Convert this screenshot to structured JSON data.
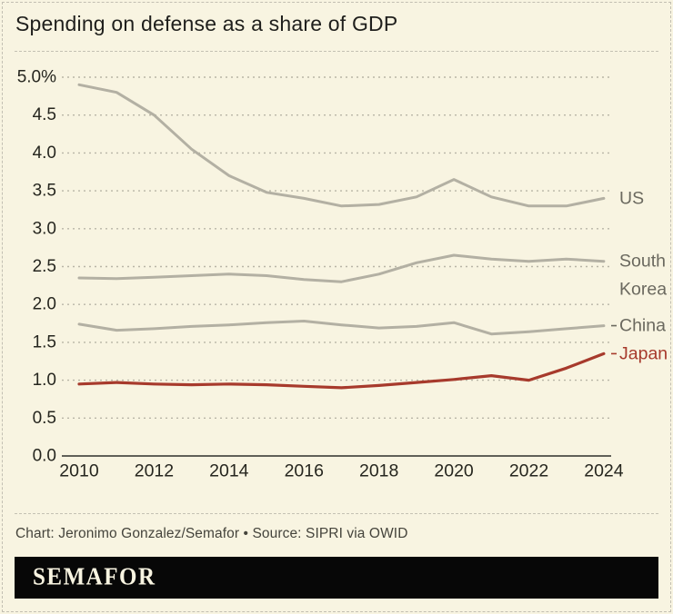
{
  "title": "Spending on defense as a share of GDP",
  "credit": "Chart: Jeronimo Gonzalez/Semafor • Source: SIPRI via OWID",
  "logo": "SEMAFOR",
  "colors": {
    "background": "#f8f4e1",
    "line_gray": "#b3b0a3",
    "label_gray": "#6b695f",
    "accent_red": "#a73a2c",
    "grid_dot": "#b8b5a6",
    "axis": "#2e2e2a",
    "tick_text": "#26261f",
    "logo_bar": "#070707"
  },
  "chart_data": {
    "type": "line",
    "x": [
      2010,
      2011,
      2012,
      2013,
      2014,
      2015,
      2016,
      2017,
      2018,
      2019,
      2020,
      2021,
      2022,
      2023,
      2024
    ],
    "series": [
      {
        "name": "US",
        "color": "gray",
        "values": [
          4.9,
          4.8,
          4.5,
          4.05,
          3.7,
          3.48,
          3.4,
          3.3,
          3.32,
          3.42,
          3.65,
          3.42,
          3.3,
          3.3,
          3.4
        ]
      },
      {
        "name": "South Korea",
        "color": "gray",
        "values": [
          2.35,
          2.34,
          2.36,
          2.38,
          2.4,
          2.38,
          2.33,
          2.3,
          2.4,
          2.55,
          2.65,
          2.6,
          2.57,
          2.6,
          2.57
        ]
      },
      {
        "name": "China",
        "color": "gray",
        "values": [
          1.74,
          1.66,
          1.68,
          1.71,
          1.73,
          1.76,
          1.78,
          1.73,
          1.69,
          1.71,
          1.76,
          1.61,
          1.64,
          1.68,
          1.72
        ]
      },
      {
        "name": "Japan",
        "color": "red",
        "values": [
          0.95,
          0.97,
          0.95,
          0.94,
          0.95,
          0.94,
          0.92,
          0.9,
          0.93,
          0.97,
          1.01,
          1.06,
          1.0,
          1.16,
          1.35
        ]
      }
    ],
    "ylim": [
      0,
      5.0
    ],
    "yticks": {
      "values": [
        5.0,
        4.5,
        4.0,
        3.5,
        3.0,
        2.5,
        2.0,
        1.5,
        1.0,
        0.5,
        0.0
      ],
      "labels": [
        "5.0%",
        "4.5",
        "4.0",
        "3.5",
        "3.0",
        "2.5",
        "2.0",
        "1.5",
        "1.0",
        "0.5",
        "0.0"
      ]
    },
    "xticks": {
      "values": [
        2010,
        2012,
        2014,
        2016,
        2018,
        2020,
        2022,
        2024
      ],
      "labels": [
        "2010",
        "2012",
        "2014",
        "2016",
        "2018",
        "2020",
        "2022",
        "2024"
      ]
    },
    "grid": "horizontal-dotted",
    "legend_position": "right-edge-labels"
  }
}
